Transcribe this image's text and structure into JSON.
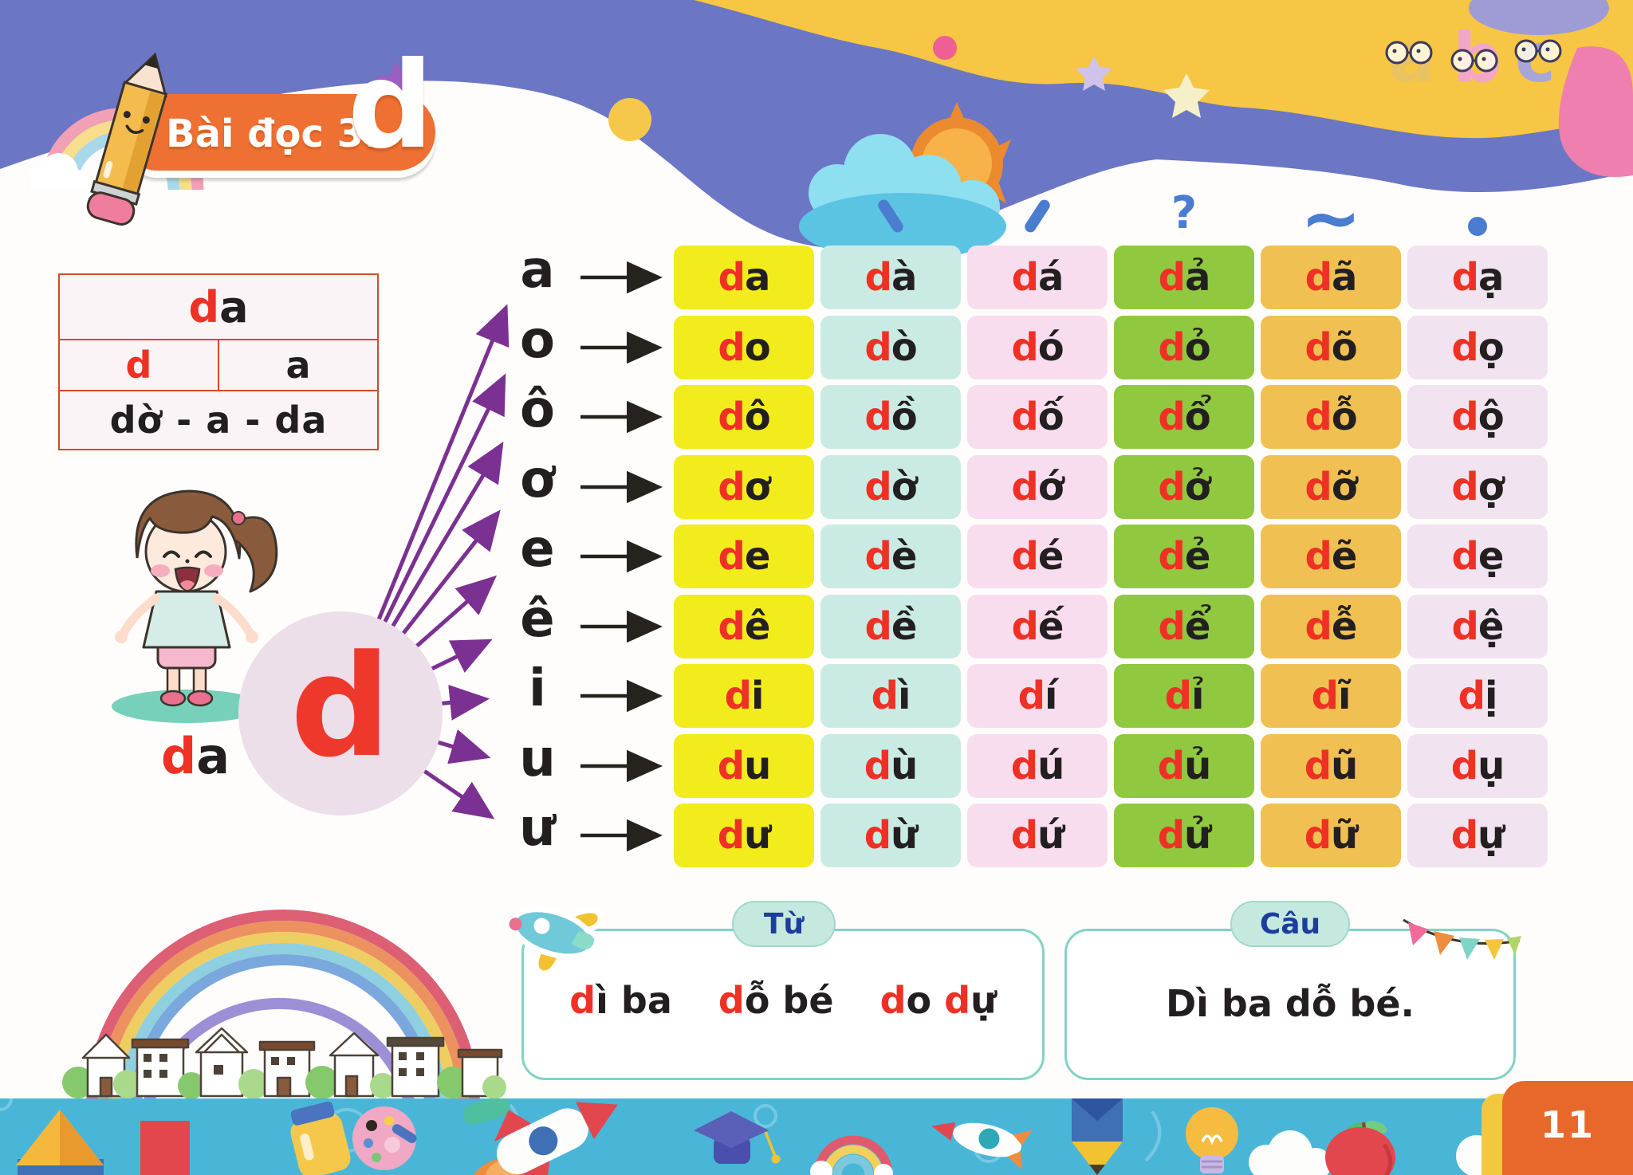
{
  "page_number": "11",
  "title": {
    "prefix": "Bài đọc 3:",
    "letter": "d"
  },
  "banner": {
    "abc_letters": [
      "a",
      "b",
      "c"
    ]
  },
  "breakdown_box": {
    "syllable": "da",
    "onset": "d",
    "vowel": "a",
    "spelling": "dờ - a - da"
  },
  "girl_label": "da",
  "focus_letter": "d",
  "vowels": [
    "a",
    "o",
    "ô",
    "ơ",
    "e",
    "ê",
    "i",
    "u",
    "ư"
  ],
  "tone_marks": [
    {
      "name": "thanh huyền",
      "shape": "grave-stroke"
    },
    {
      "name": "thanh sắc",
      "shape": "acute-stroke"
    },
    {
      "name": "thanh hỏi",
      "display": "?"
    },
    {
      "name": "thanh ngã",
      "display": "~"
    },
    {
      "name": "thanh nặng",
      "shape": "dot"
    }
  ],
  "syllable_table": {
    "column_colors": [
      "#f2ec1c",
      "#c9ebe4",
      "#f8ddef",
      "#90c83f",
      "#f0c152",
      "#f1e3ef"
    ],
    "rows": [
      [
        "da",
        "dà",
        "dá",
        "dả",
        "dã",
        "dạ"
      ],
      [
        "do",
        "dò",
        "dó",
        "dỏ",
        "dõ",
        "dọ"
      ],
      [
        "dô",
        "dồ",
        "dố",
        "dổ",
        "dỗ",
        "dộ"
      ],
      [
        "dơ",
        "dờ",
        "dớ",
        "dở",
        "dỡ",
        "dợ"
      ],
      [
        "de",
        "dè",
        "dé",
        "dẻ",
        "dẽ",
        "dẹ"
      ],
      [
        "dê",
        "dề",
        "dế",
        "dể",
        "dễ",
        "dệ"
      ],
      [
        "di",
        "dì",
        "dí",
        "dỉ",
        "dĩ",
        "dị"
      ],
      [
        "du",
        "dù",
        "dú",
        "dủ",
        "dũ",
        "dụ"
      ],
      [
        "dư",
        "dừ",
        "dứ",
        "dử",
        "dữ",
        "dự"
      ]
    ]
  },
  "words_box": {
    "label": "Từ",
    "words": [
      "dì ba",
      "dỗ bé",
      "do dự"
    ]
  },
  "sentence_box": {
    "label": "Câu",
    "sentence": "Dì ba dỗ bé."
  },
  "colors": {
    "red_letter": "#ee3124",
    "black_letter": "#231f20",
    "tone_blue": "#4a7cd0",
    "badge_orange": "#ef7033",
    "banner_purple": "#6b76c5",
    "banner_yellow": "#f6c644",
    "strip_teal": "#49b6d8",
    "tab_orange": "#e8682b"
  },
  "decor_icons": [
    "pencil-mascot",
    "rainbow",
    "cloud",
    "sun",
    "stars",
    "girl",
    "airplane-sticker",
    "bunting-flags",
    "rainbow-houses",
    "pyramid",
    "block",
    "jar",
    "paint-palette",
    "rocket",
    "graduation-cap",
    "small-rainbow",
    "small-rocket",
    "pencil",
    "light-bulb",
    "cloud",
    "apple"
  ]
}
